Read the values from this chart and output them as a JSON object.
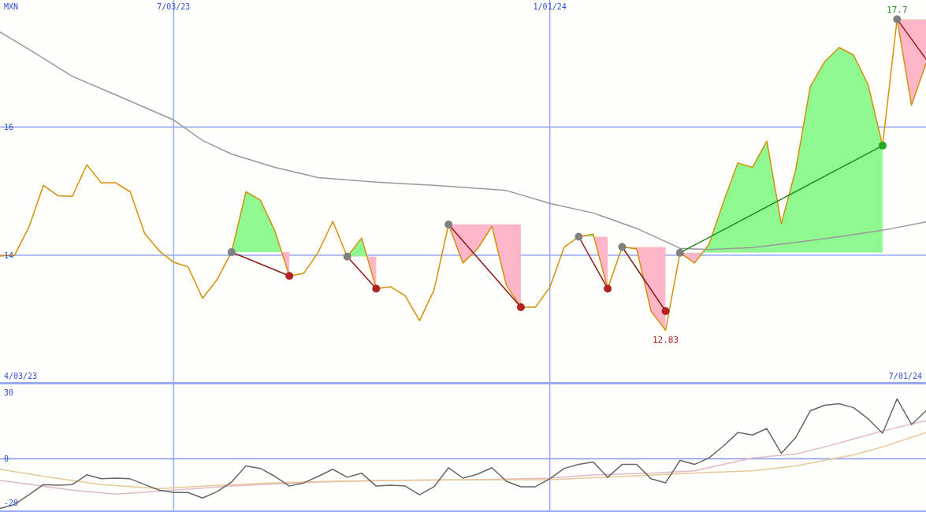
{
  "chart_data": [
    {
      "type": "line",
      "ylabel": "MXN",
      "xlim": [
        "2023-04-10",
        "2024-07-01"
      ],
      "ylim": [
        12,
        17.98
      ],
      "yticks": [
        14,
        16
      ],
      "xticks": [
        {
          "value": "2023-07-03",
          "label": "7/03/23"
        },
        {
          "value": "2024-01-01",
          "label": "1/01/24"
        }
      ],
      "grid": true,
      "x": [
        "2023-04-10",
        "2023-04-17",
        "2023-04-24",
        "2023-05-01",
        "2023-05-08",
        "2023-05-15",
        "2023-05-22",
        "2023-05-29",
        "2023-06-05",
        "2023-06-12",
        "2023-06-19",
        "2023-06-26",
        "2023-07-03",
        "2023-07-10",
        "2023-07-17",
        "2023-07-24",
        "2023-07-31",
        "2023-08-07",
        "2023-08-14",
        "2023-08-21",
        "2023-08-28",
        "2023-09-04",
        "2023-09-11",
        "2023-09-18",
        "2023-09-25",
        "2023-10-02",
        "2023-10-09",
        "2023-10-16",
        "2023-10-23",
        "2023-10-30",
        "2023-11-06",
        "2023-11-13",
        "2023-11-20",
        "2023-11-27",
        "2023-12-04",
        "2023-12-11",
        "2023-12-18",
        "2023-12-25",
        "2024-01-01",
        "2024-01-08",
        "2024-01-15",
        "2024-01-22",
        "2024-01-29",
        "2024-02-05",
        "2024-02-12",
        "2024-02-19",
        "2024-02-26",
        "2024-03-04",
        "2024-03-11",
        "2024-03-18",
        "2024-03-25",
        "2024-04-01",
        "2024-04-08",
        "2024-04-15",
        "2024-04-22",
        "2024-04-29",
        "2024-05-06",
        "2024-05-13",
        "2024-05-20",
        "2024-05-27",
        "2024-06-03",
        "2024-06-10",
        "2024-06-17",
        "2024-06-24",
        "2024-07-01"
      ],
      "series": [
        {
          "type": "line",
          "color": "#d4900a",
          "values": [
            13.99,
            14.0,
            14.44,
            15.09,
            14.93,
            14.92,
            15.41,
            15.13,
            15.13,
            14.99,
            14.34,
            14.07,
            13.89,
            13.82,
            13.33,
            13.62,
            14.05,
            14.99,
            14.86,
            14.38,
            13.68,
            13.72,
            14.05,
            14.53,
            13.98,
            14.27,
            13.48,
            13.51,
            13.37,
            12.98,
            13.46,
            14.48,
            13.88,
            14.1,
            14.45,
            13.53,
            13.19,
            13.19,
            13.5,
            14.13,
            14.29,
            14.33,
            13.48,
            14.13,
            14.1,
            13.13,
            12.83,
            14.04,
            13.88,
            14.17,
            14.83,
            15.44,
            15.37,
            15.78,
            14.49,
            15.34,
            16.63,
            17.02,
            17.24,
            17.12,
            16.66,
            15.71,
            17.68,
            16.34,
            16.99
          ]
        },
        {
          "type": "line",
          "color": "#999999",
          "x": [
            "2023-04-10",
            "2023-04-24",
            "2023-05-15",
            "2023-06-05",
            "2023-07-03",
            "2023-07-17",
            "2023-07-31",
            "2023-08-21",
            "2023-09-11",
            "2023-10-09",
            "2023-11-06",
            "2023-12-11",
            "2024-01-01",
            "2024-01-22",
            "2024-02-12",
            "2024-03-04",
            "2024-03-18",
            "2024-04-08",
            "2024-04-29",
            "2024-05-20",
            "2024-06-10",
            "2024-07-01"
          ],
          "values": [
            17.48,
            17.21,
            16.79,
            16.5,
            16.11,
            15.79,
            15.58,
            15.37,
            15.21,
            15.14,
            15.09,
            15.01,
            14.81,
            14.66,
            14.42,
            14.11,
            14.09,
            14.12,
            14.2,
            14.29,
            14.39,
            14.52
          ]
        },
        {
          "type": "line",
          "color": "#8b1a1a",
          "x": [
            "2023-07-31",
            "2023-08-28"
          ],
          "values": [
            14.05,
            13.68
          ]
        },
        {
          "type": "line",
          "color": "#8b1a1a",
          "x": [
            "2023-09-25",
            "2023-10-09"
          ],
          "values": [
            13.98,
            13.48
          ]
        },
        {
          "type": "line",
          "color": "#8b1a1a",
          "x": [
            "2023-11-13",
            "2023-12-18"
          ],
          "values": [
            14.48,
            13.19
          ]
        },
        {
          "type": "line",
          "color": "#8b1a1a",
          "x": [
            "2024-01-15",
            "2024-01-29"
          ],
          "values": [
            14.29,
            13.48
          ]
        },
        {
          "type": "line",
          "color": "#8b1a1a",
          "x": [
            "2024-02-05",
            "2024-02-26"
          ],
          "values": [
            14.13,
            13.13
          ]
        },
        {
          "type": "line",
          "color": "#228b22",
          "x": [
            "2024-03-04",
            "2024-06-10"
          ],
          "values": [
            14.04,
            15.71
          ]
        },
        {
          "type": "line",
          "color": "#8b1a1a",
          "x": [
            "2024-06-17",
            "2024-07-01"
          ],
          "values": [
            17.68,
            17.06
          ]
        },
        {
          "type": "scatter",
          "color": "#808080",
          "marker": "circle",
          "x": [
            "2023-07-31",
            "2023-09-25",
            "2023-11-13",
            "2024-01-15",
            "2024-02-05",
            "2024-03-04",
            "2024-06-17"
          ],
          "values": [
            14.05,
            13.98,
            14.48,
            14.29,
            14.13,
            14.04,
            17.68
          ]
        },
        {
          "type": "scatter",
          "color": "#b22222",
          "marker": "circle",
          "x": [
            "2023-08-28",
            "2023-10-09",
            "2023-12-18",
            "2024-01-29",
            "2024-02-26"
          ],
          "values": [
            13.68,
            13.48,
            13.19,
            13.48,
            13.13
          ]
        },
        {
          "type": "scatter",
          "color": "#22aa22",
          "marker": "circle",
          "x": [
            "2024-06-10"
          ],
          "values": [
            15.71
          ]
        }
      ],
      "annotations": [
        "4/03/23",
        "7/01/24",
        {
          "text": "17.7",
          "x": "2024-06-17",
          "y": 17.68
        },
        {
          "text": "12.83",
          "x": "2024-02-26",
          "y": 12.83
        }
      ]
    },
    {
      "type": "line",
      "xlim": [
        "2023-04-10",
        "2024-07-01"
      ],
      "ylim": [
        -24,
        34
      ],
      "yticks": [
        -20,
        0,
        30
      ],
      "xticks": [
        {
          "value": "2023-07-03",
          "label": null
        },
        {
          "value": "2024-01-01",
          "label": null
        }
      ],
      "grid": "x",
      "tick_labels": "y",
      "ref_lines": [
        {
          "axis": "y",
          "value": 0,
          "color": "#8899ee"
        }
      ],
      "x": [
        "2023-04-10",
        "2023-04-17",
        "2023-04-24",
        "2023-05-01",
        "2023-05-08",
        "2023-05-15",
        "2023-05-22",
        "2023-05-29",
        "2023-06-05",
        "2023-06-12",
        "2023-06-19",
        "2023-06-26",
        "2023-07-03",
        "2023-07-10",
        "2023-07-17",
        "2023-07-24",
        "2023-07-31",
        "2023-08-07",
        "2023-08-14",
        "2023-08-21",
        "2023-08-28",
        "2023-09-04",
        "2023-09-11",
        "2023-09-18",
        "2023-09-25",
        "2023-10-02",
        "2023-10-09",
        "2023-10-16",
        "2023-10-23",
        "2023-10-30",
        "2023-11-06",
        "2023-11-13",
        "2023-11-20",
        "2023-11-27",
        "2023-12-04",
        "2023-12-11",
        "2023-12-18",
        "2023-12-25",
        "2024-01-01",
        "2024-01-08",
        "2024-01-15",
        "2024-01-22",
        "2024-01-29",
        "2024-02-05",
        "2024-02-12",
        "2024-02-19",
        "2024-02-26",
        "2024-03-04",
        "2024-03-11",
        "2024-03-18",
        "2024-03-25",
        "2024-04-01",
        "2024-04-08",
        "2024-04-15",
        "2024-04-22",
        "2024-04-29",
        "2024-05-06",
        "2024-05-13",
        "2024-05-20",
        "2024-05-27",
        "2024-06-03",
        "2024-06-10",
        "2024-06-17",
        "2024-06-24",
        "2024-07-01"
      ],
      "series": [
        {
          "type": "line",
          "color": "#e0b8c8",
          "x": [
            "2023-04-10",
            "2023-05-15",
            "2023-06-05",
            "2023-07-03",
            "2023-07-31",
            "2023-09-11",
            "2023-10-16",
            "2023-11-27",
            "2024-01-01",
            "2024-01-22",
            "2024-02-19",
            "2024-03-11",
            "2024-03-25",
            "2024-04-08",
            "2024-04-29",
            "2024-05-13",
            "2024-05-27",
            "2024-06-10",
            "2024-07-01"
          ],
          "values": [
            -9.7,
            -14.1,
            -15.9,
            -14.1,
            -12.3,
            -10.5,
            -9.7,
            -9.4,
            -8.7,
            -7.2,
            -6.5,
            -5.4,
            -2.5,
            0.4,
            2.2,
            5.4,
            9.0,
            12.6,
            17.3
          ]
        },
        {
          "type": "line",
          "color": "#e8c89a",
          "x": [
            "2023-04-10",
            "2023-05-01",
            "2023-05-29",
            "2023-06-26",
            "2023-07-17",
            "2023-08-21",
            "2023-09-18",
            "2023-10-16",
            "2023-11-27",
            "2024-01-01",
            "2024-02-12",
            "2024-03-18",
            "2024-04-08",
            "2024-04-29",
            "2024-05-27",
            "2024-06-10",
            "2024-07-01"
          ],
          "values": [
            -4.7,
            -7.9,
            -11.6,
            -13.4,
            -12.3,
            -10.8,
            -10.1,
            -9.7,
            -9.4,
            -9.4,
            -7.6,
            -6.1,
            -5.4,
            -3.2,
            1.8,
            5.4,
            11.9
          ]
        },
        {
          "type": "line",
          "color": "#666666",
          "values": [
            -22.4,
            -20.6,
            -16.2,
            -11.6,
            -11.9,
            -11.6,
            -7.2,
            -9.0,
            -8.7,
            -9.0,
            -11.6,
            -14.1,
            -15.2,
            -15.2,
            -17.7,
            -14.8,
            -10.5,
            -3.2,
            -4.3,
            -7.9,
            -12.3,
            -10.8,
            -7.9,
            -4.7,
            -8.3,
            -6.5,
            -12.3,
            -11.9,
            -12.3,
            -16.2,
            -12.6,
            -4.0,
            -8.7,
            -6.9,
            -4.0,
            -10.1,
            -12.6,
            -12.6,
            -9.0,
            -4.3,
            -2.5,
            -1.4,
            -8.3,
            -2.5,
            -2.5,
            -9.0,
            -10.8,
            -0.7,
            -2.5,
            0.4,
            5.8,
            11.9,
            10.8,
            13.7,
            2.5,
            9.7,
            21.7,
            24.2,
            24.9,
            23.1,
            18.1,
            11.6,
            27.1,
            15.5,
            21.7
          ]
        }
      ]
    }
  ]
}
